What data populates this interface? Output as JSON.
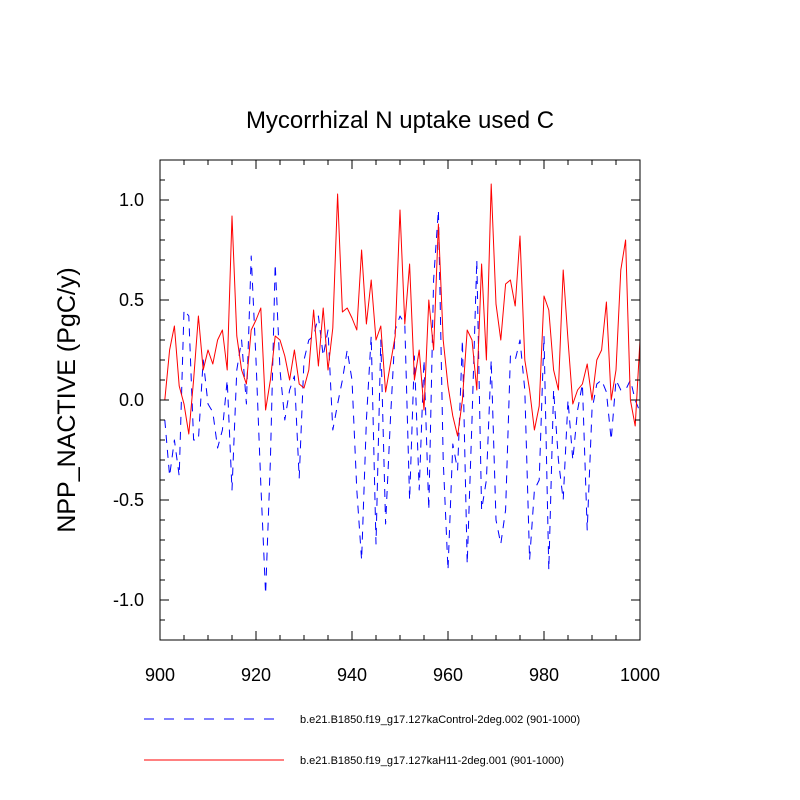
{
  "chart_data": {
    "type": "line",
    "title": "Mycorrhizal N uptake used C",
    "xlabel": "",
    "ylabel": "NPP_NACTIVE  (PgC/y)",
    "xlim": [
      900,
      1000
    ],
    "ylim": [
      -1.2,
      1.2
    ],
    "xticks": [
      900,
      920,
      940,
      960,
      980,
      1000
    ],
    "xtick_labels": [
      "900",
      "920",
      "940",
      "960",
      "980",
      "1000"
    ],
    "yticks": [
      -1.0,
      -0.5,
      0.0,
      0.5,
      1.0
    ],
    "ytick_labels": [
      "-1.0",
      "-0.5",
      "0.0",
      "0.5",
      "1.0"
    ],
    "grid": false,
    "legend_position": "bottom",
    "series": [
      {
        "name": "b.e21.B1850.f19_g17.127kaControl-2deg.002 (901-1000)",
        "color": "#0000ff",
        "style": "dashed",
        "x": [
          901,
          902,
          903,
          904,
          905,
          906,
          907,
          908,
          909,
          910,
          911,
          912,
          913,
          914,
          915,
          916,
          917,
          918,
          919,
          920,
          921,
          922,
          923,
          924,
          925,
          926,
          927,
          928,
          929,
          930,
          931,
          932,
          933,
          934,
          935,
          936,
          937,
          938,
          939,
          940,
          941,
          942,
          943,
          944,
          945,
          946,
          947,
          948,
          949,
          950,
          951,
          952,
          953,
          954,
          955,
          956,
          957,
          958,
          959,
          960,
          961,
          962,
          963,
          964,
          965,
          966,
          967,
          968,
          969,
          970,
          971,
          972,
          973,
          974,
          975,
          976,
          977,
          978,
          979,
          980,
          981,
          982,
          983,
          984,
          985,
          986,
          987,
          988,
          989,
          990,
          991,
          992,
          993,
          994,
          995,
          996,
          997,
          998,
          999,
          1000
        ],
        "values": [
          -0.1,
          -0.38,
          -0.2,
          -0.38,
          0.45,
          0.42,
          -0.2,
          -0.2,
          0.2,
          -0.02,
          -0.06,
          -0.24,
          -0.15,
          0.1,
          -0.45,
          0.15,
          0.3,
          -0.02,
          0.72,
          0.2,
          -0.42,
          -0.97,
          -0.3,
          0.68,
          0.15,
          -0.1,
          0.05,
          0.12,
          -0.39,
          0.2,
          0.3,
          0.32,
          0.42,
          0.22,
          0.35,
          -0.15,
          -0.02,
          0.1,
          0.25,
          0.1,
          -0.45,
          -0.8,
          -0.1,
          0.32,
          -0.72,
          0.3,
          -0.62,
          -0.1,
          0.35,
          0.42,
          0.38,
          -0.5,
          0.22,
          -0.45,
          0.2,
          -0.55,
          0.6,
          0.95,
          -0.3,
          -0.85,
          -0.22,
          -0.35,
          0.3,
          -0.82,
          -0.1,
          0.7,
          -0.55,
          -0.4,
          0.2,
          -0.6,
          -0.72,
          -0.55,
          0.22,
          0.2,
          0.3,
          0.05,
          -0.8,
          -0.45,
          -0.4,
          0.32,
          -0.85,
          0.05,
          -0.3,
          -0.5,
          0.0,
          -0.3,
          -0.05,
          0.08,
          -0.65,
          -0.05,
          0.08,
          0.1,
          0.04,
          -0.2,
          0.1,
          0.05,
          0.05,
          0.1,
          0.0,
          -0.06
        ]
      },
      {
        "name": "b.e21.B1850.f19_g17.127kaH11-2deg.001 (901-1000)",
        "color": "#ff0000",
        "style": "solid",
        "x": [
          901,
          902,
          903,
          904,
          905,
          906,
          907,
          908,
          909,
          910,
          911,
          912,
          913,
          914,
          915,
          916,
          917,
          918,
          919,
          920,
          921,
          922,
          923,
          924,
          925,
          926,
          927,
          928,
          929,
          930,
          931,
          932,
          933,
          934,
          935,
          936,
          937,
          938,
          939,
          940,
          941,
          942,
          943,
          944,
          945,
          946,
          947,
          948,
          949,
          950,
          951,
          952,
          953,
          954,
          955,
          956,
          957,
          958,
          959,
          960,
          961,
          962,
          963,
          964,
          965,
          966,
          967,
          968,
          969,
          970,
          971,
          972,
          973,
          974,
          975,
          976,
          977,
          978,
          979,
          980,
          981,
          982,
          983,
          984,
          985,
          986,
          987,
          988,
          989,
          990,
          991,
          992,
          993,
          994,
          995,
          996,
          997,
          998,
          999,
          1000
        ],
        "values": [
          0.0,
          0.25,
          0.37,
          0.07,
          -0.02,
          -0.17,
          0.1,
          0.42,
          0.15,
          0.25,
          0.18,
          0.3,
          0.35,
          0.15,
          0.92,
          0.32,
          0.15,
          0.08,
          0.35,
          0.4,
          0.46,
          -0.05,
          0.1,
          0.32,
          0.3,
          0.22,
          0.1,
          0.25,
          0.08,
          0.06,
          0.15,
          0.45,
          0.17,
          0.46,
          0.15,
          0.36,
          1.03,
          0.44,
          0.46,
          0.41,
          0.35,
          0.75,
          0.38,
          0.6,
          0.3,
          0.37,
          0.04,
          0.18,
          0.32,
          0.95,
          0.38,
          0.68,
          0.1,
          0.25,
          -0.05,
          0.5,
          0.25,
          0.88,
          0.3,
          0.07,
          -0.08,
          -0.18,
          0.0,
          0.35,
          0.3,
          0.05,
          0.68,
          0.2,
          1.08,
          0.48,
          0.3,
          0.58,
          0.6,
          0.47,
          0.82,
          0.2,
          0.05,
          -0.15,
          -0.03,
          0.52,
          0.45,
          0.15,
          0.05,
          0.65,
          0.3,
          -0.02,
          0.05,
          0.08,
          0.18,
          0.0,
          0.2,
          0.25,
          0.49,
          0.0,
          0.15,
          0.65,
          0.8,
          0.0,
          -0.13,
          0.3
        ]
      }
    ]
  }
}
